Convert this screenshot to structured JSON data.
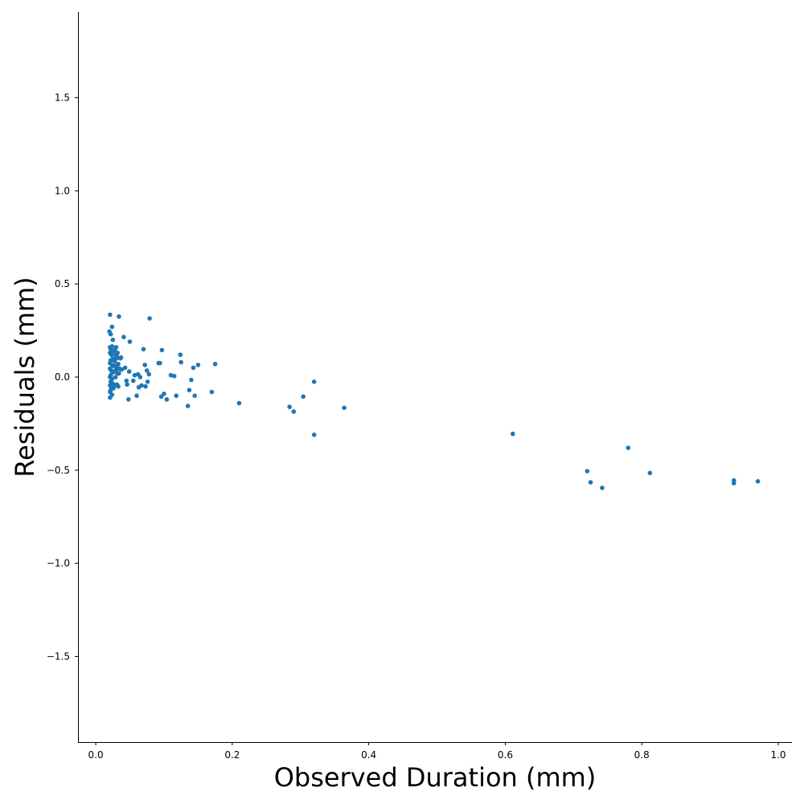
{
  "chart_data": {
    "type": "scatter",
    "title": "",
    "xlabel": "Observed Duration (mm)",
    "ylabel": "Residuals (mm)",
    "xlim": [
      -0.026,
      1.02
    ],
    "ylim": [
      -1.96,
      1.96
    ],
    "xticks": [
      0.0,
      0.2,
      0.4,
      0.6,
      0.8,
      1.0
    ],
    "xtick_labels": [
      "0.0",
      "0.2",
      "0.4",
      "0.6",
      "0.8",
      "1.0"
    ],
    "yticks": [
      -1.5,
      -1.0,
      -0.5,
      0.0,
      0.5,
      1.0,
      1.5
    ],
    "ytick_labels": [
      "−1.5",
      "−1.0",
      "−0.5",
      "0.0",
      "0.5",
      "1.0",
      "1.5"
    ],
    "grid": false,
    "marker_color": "#1f77b4",
    "series": [
      {
        "x": [
          0.021,
          0.024,
          0.02,
          0.022,
          0.025,
          0.024,
          0.021,
          0.022,
          0.026,
          0.021,
          0.023,
          0.025,
          0.022,
          0.021,
          0.024,
          0.026,
          0.021,
          0.023,
          0.025,
          0.022,
          0.021,
          0.024,
          0.022,
          0.025,
          0.021,
          0.023,
          0.026,
          0.022,
          0.021,
          0.024,
          0.021,
          0.03,
          0.028,
          0.032,
          0.029,
          0.031,
          0.03,
          0.028,
          0.033,
          0.029,
          0.031,
          0.03,
          0.028,
          0.032,
          0.029,
          0.031,
          0.033,
          0.028,
          0.034,
          0.036,
          0.037,
          0.035,
          0.038,
          0.034,
          0.041,
          0.043,
          0.045,
          0.046,
          0.048,
          0.05,
          0.049,
          0.055,
          0.057,
          0.06,
          0.062,
          0.063,
          0.065,
          0.067,
          0.07,
          0.072,
          0.073,
          0.075,
          0.076,
          0.078,
          0.079,
          0.092,
          0.094,
          0.096,
          0.097,
          0.1,
          0.104,
          0.11,
          0.115,
          0.118,
          0.124,
          0.125,
          0.135,
          0.137,
          0.14,
          0.143,
          0.145,
          0.15,
          0.17,
          0.175,
          0.21,
          0.284,
          0.29,
          0.304,
          0.32,
          0.32,
          0.364,
          0.611,
          0.72,
          0.725,
          0.742,
          0.78,
          0.812,
          0.935,
          0.935,
          0.97
        ],
        "y": [
          0.335,
          0.27,
          0.245,
          0.23,
          0.2,
          0.165,
          0.16,
          0.15,
          0.14,
          0.13,
          0.12,
          0.1,
          0.09,
          0.075,
          0.065,
          0.06,
          0.045,
          0.035,
          0.025,
          0.01,
          0.0,
          -0.01,
          -0.025,
          -0.035,
          -0.045,
          -0.055,
          -0.06,
          -0.07,
          -0.08,
          -0.095,
          -0.11,
          0.16,
          0.145,
          0.13,
          0.12,
          0.11,
          0.1,
          0.085,
          0.07,
          0.06,
          0.05,
          0.04,
          0.03,
          0.02,
          0.0,
          -0.04,
          -0.05,
          -0.045,
          0.325,
          0.1,
          0.105,
          0.045,
          0.04,
          0.02,
          0.215,
          0.05,
          -0.02,
          -0.04,
          -0.12,
          0.19,
          0.03,
          -0.02,
          0.01,
          -0.1,
          0.015,
          -0.055,
          0.0,
          -0.045,
          0.15,
          0.065,
          -0.05,
          0.035,
          -0.025,
          0.015,
          0.315,
          0.075,
          0.075,
          -0.105,
          0.145,
          -0.09,
          -0.12,
          0.01,
          0.005,
          -0.1,
          0.12,
          0.08,
          -0.155,
          -0.07,
          -0.015,
          0.05,
          -0.1,
          0.065,
          -0.08,
          0.07,
          -0.14,
          -0.16,
          -0.185,
          -0.105,
          -0.025,
          -0.31,
          -0.165,
          -0.305,
          -0.505,
          -0.565,
          -0.595,
          -0.38,
          -0.515,
          -0.555,
          -0.57,
          -0.56
        ]
      }
    ]
  }
}
